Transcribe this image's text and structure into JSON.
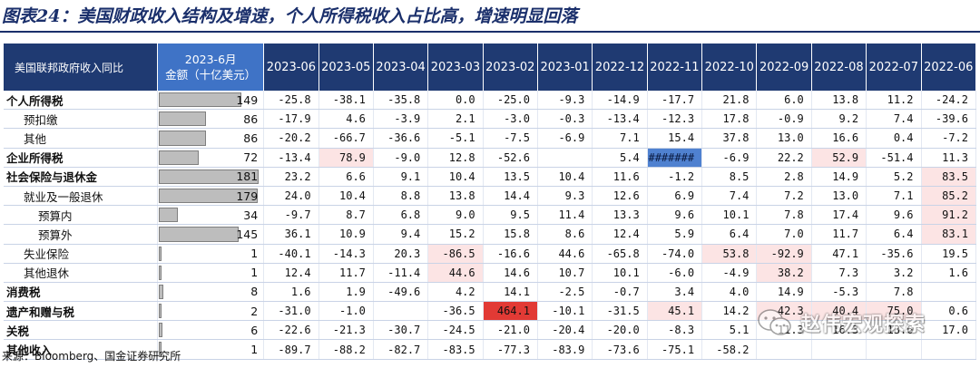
{
  "title": "图表24：美国财政收入结构及增速，个人所得税收入占比高，增速明显回落",
  "source": "来源：Bloomberg、国金证券研究所",
  "watermark": "赵伟宏观探索",
  "colors": {
    "header_bg": "#1f3a72",
    "amount_header_bg": "#3f73c6",
    "bar_fill": "#bdbdbd",
    "negative_cell": "#fce4e4",
    "strong_red_cell": "#e23a35",
    "error_cell": "#4f81d0"
  },
  "header": {
    "label": "美国联邦政府收入同比",
    "amount_line1": "2023-6月",
    "amount_line2": "金额（十亿美元）",
    "months": [
      "2023-06",
      "2023-05",
      "2023-04",
      "2023-03",
      "2023-02",
      "2023-01",
      "2022-12",
      "2022-11",
      "2022-10",
      "2022-09",
      "2022-08",
      "2022-07",
      "2022-06"
    ]
  },
  "amount_max": 181,
  "rows": [
    {
      "label": "个人所得税",
      "indent": 0,
      "bold": true,
      "amount": "149",
      "amount_value": 149,
      "values": [
        "-25.8",
        "-38.1",
        "-35.8",
        "0.0",
        "-25.0",
        "-9.3",
        "-14.9",
        "-17.7",
        "21.8",
        "6.0",
        "13.8",
        "11.2",
        "-24.2"
      ],
      "styles": [
        "",
        "",
        "",
        "",
        "",
        "",
        "",
        "",
        "",
        "",
        "",
        "",
        ""
      ]
    },
    {
      "label": "预扣缴",
      "indent": 1,
      "bold": false,
      "amount": "86",
      "amount_value": 86,
      "values": [
        "-17.9",
        "4.6",
        "-3.9",
        "2.1",
        "-3.0",
        "-0.3",
        "-13.4",
        "-12.3",
        "17.8",
        "-0.9",
        "9.2",
        "7.4",
        "-39.6"
      ],
      "styles": [
        "",
        "",
        "",
        "",
        "",
        "",
        "",
        "",
        "",
        "",
        "",
        "",
        ""
      ]
    },
    {
      "label": "其他",
      "indent": 1,
      "bold": false,
      "amount": "86",
      "amount_value": 86,
      "values": [
        "-20.2",
        "-66.7",
        "-36.6",
        "-5.1",
        "-7.5",
        "-6.9",
        "7.1",
        "15.4",
        "37.8",
        "13.0",
        "16.6",
        "0.4",
        "-7.2"
      ],
      "styles": [
        "",
        "",
        "",
        "",
        "",
        "",
        "",
        "",
        "",
        "",
        "",
        "",
        ""
      ]
    },
    {
      "label": "企业所得税",
      "indent": 0,
      "bold": true,
      "amount": "72",
      "amount_value": 72,
      "values": [
        "-13.4",
        "78.9",
        "-9.0",
        "12.8",
        "-52.6",
        "",
        "5.4",
        "#######",
        "-6.9",
        "22.2",
        "52.9",
        "-51.4",
        "11.3"
      ],
      "styles": [
        "",
        "pink",
        "",
        "",
        "",
        "",
        "",
        "error",
        "",
        "",
        "pink",
        "",
        ""
      ]
    },
    {
      "label": "社会保险与退休金",
      "indent": 0,
      "bold": true,
      "amount": "181",
      "amount_value": 181,
      "values": [
        "23.2",
        "6.6",
        "9.1",
        "10.4",
        "13.5",
        "10.4",
        "11.6",
        "-1.2",
        "8.5",
        "2.8",
        "14.9",
        "5.2",
        "83.5"
      ],
      "styles": [
        "",
        "",
        "",
        "",
        "",
        "",
        "",
        "",
        "",
        "",
        "",
        "",
        "pink"
      ]
    },
    {
      "label": "就业及一般退休",
      "indent": 1,
      "bold": false,
      "amount": "179",
      "amount_value": 179,
      "values": [
        "24.0",
        "10.4",
        "8.8",
        "13.8",
        "14.4",
        "9.3",
        "12.6",
        "6.9",
        "7.4",
        "7.2",
        "13.0",
        "7.1",
        "85.2"
      ],
      "styles": [
        "",
        "",
        "",
        "",
        "",
        "",
        "",
        "",
        "",
        "",
        "",
        "",
        "pink"
      ]
    },
    {
      "label": "预算内",
      "indent": 2,
      "bold": false,
      "amount": "34",
      "amount_value": 34,
      "values": [
        "-9.7",
        "8.7",
        "6.8",
        "9.0",
        "9.5",
        "11.4",
        "13.3",
        "9.6",
        "10.1",
        "7.8",
        "17.4",
        "9.6",
        "91.2"
      ],
      "styles": [
        "",
        "",
        "",
        "",
        "",
        "",
        "",
        "",
        "",
        "",
        "",
        "",
        "pink"
      ]
    },
    {
      "label": "预算外",
      "indent": 2,
      "bold": false,
      "amount": "145",
      "amount_value": 145,
      "values": [
        "36.1",
        "10.9",
        "9.4",
        "15.2",
        "15.8",
        "8.6",
        "12.4",
        "5.9",
        "6.4",
        "7.0",
        "11.7",
        "6.4",
        "83.1"
      ],
      "styles": [
        "",
        "",
        "",
        "",
        "",
        "",
        "",
        "",
        "",
        "",
        "",
        "",
        "pink"
      ]
    },
    {
      "label": "失业保险",
      "indent": 1,
      "bold": false,
      "amount": "1",
      "amount_value": 1,
      "values": [
        "-40.1",
        "-14.3",
        "20.3",
        "-86.5",
        "-16.6",
        "44.6",
        "-65.8",
        "-74.0",
        "53.8",
        "-92.9",
        "47.1",
        "-35.6",
        "19.5"
      ],
      "styles": [
        "",
        "",
        "",
        "pink",
        "",
        "",
        "",
        "",
        "pink",
        "pink",
        "",
        "",
        ""
      ]
    },
    {
      "label": "其他退休",
      "indent": 1,
      "bold": false,
      "amount": "1",
      "amount_value": 1,
      "values": [
        "12.4",
        "11.7",
        "-11.4",
        "44.6",
        "14.6",
        "10.7",
        "10.1",
        "-6.0",
        "-4.9",
        "38.2",
        "7.3",
        "3.2",
        "1.6"
      ],
      "styles": [
        "",
        "",
        "",
        "pink",
        "",
        "",
        "",
        "",
        "",
        "pink",
        "",
        "",
        ""
      ]
    },
    {
      "label": "消费税",
      "indent": 0,
      "bold": true,
      "amount": "8",
      "amount_value": 8,
      "values": [
        "1.6",
        "1.9",
        "-49.6",
        "4.2",
        "14.1",
        "-2.5",
        "-0.7",
        "3.4",
        "4.0",
        "14.9",
        "-5.3",
        "7.8",
        ""
      ],
      "styles": [
        "",
        "",
        "",
        "",
        "",
        "",
        "",
        "",
        "",
        "",
        "",
        "",
        ""
      ]
    },
    {
      "label": "遗产和赠与税",
      "indent": 0,
      "bold": true,
      "amount": "2",
      "amount_value": 2,
      "values": [
        "-31.0",
        "-1.0",
        "",
        "-36.5",
        "464.1",
        "-10.1",
        "-31.5",
        "45.1",
        "14.2",
        "42.3",
        "40.4",
        "75.0",
        "0.6"
      ],
      "styles": [
        "",
        "",
        "",
        "",
        "red",
        "",
        "",
        "pink",
        "",
        "pink",
        "pink",
        "pink",
        ""
      ]
    },
    {
      "label": "关税",
      "indent": 0,
      "bold": true,
      "amount": "6",
      "amount_value": 6,
      "values": [
        "-22.6",
        "-21.3",
        "-30.7",
        "-24.5",
        "-21.0",
        "-20.4",
        "-20.0",
        "-8.3",
        "5.1",
        "11.3",
        "16.3",
        "13.6",
        "17.0"
      ],
      "styles": [
        "",
        "",
        "",
        "",
        "",
        "",
        "",
        "",
        "",
        "",
        "",
        "",
        ""
      ]
    },
    {
      "label": "其他收入",
      "indent": 0,
      "bold": true,
      "amount": "1",
      "amount_value": 1,
      "values": [
        "-89.7",
        "-88.2",
        "-82.7",
        "-83.5",
        "-77.3",
        "-83.9",
        "-73.6",
        "-75.1",
        "-58.2",
        "",
        "",
        "",
        ""
      ],
      "styles": [
        "",
        "",
        "",
        "",
        "",
        "",
        "",
        "",
        "",
        "",
        "",
        "",
        ""
      ]
    }
  ]
}
